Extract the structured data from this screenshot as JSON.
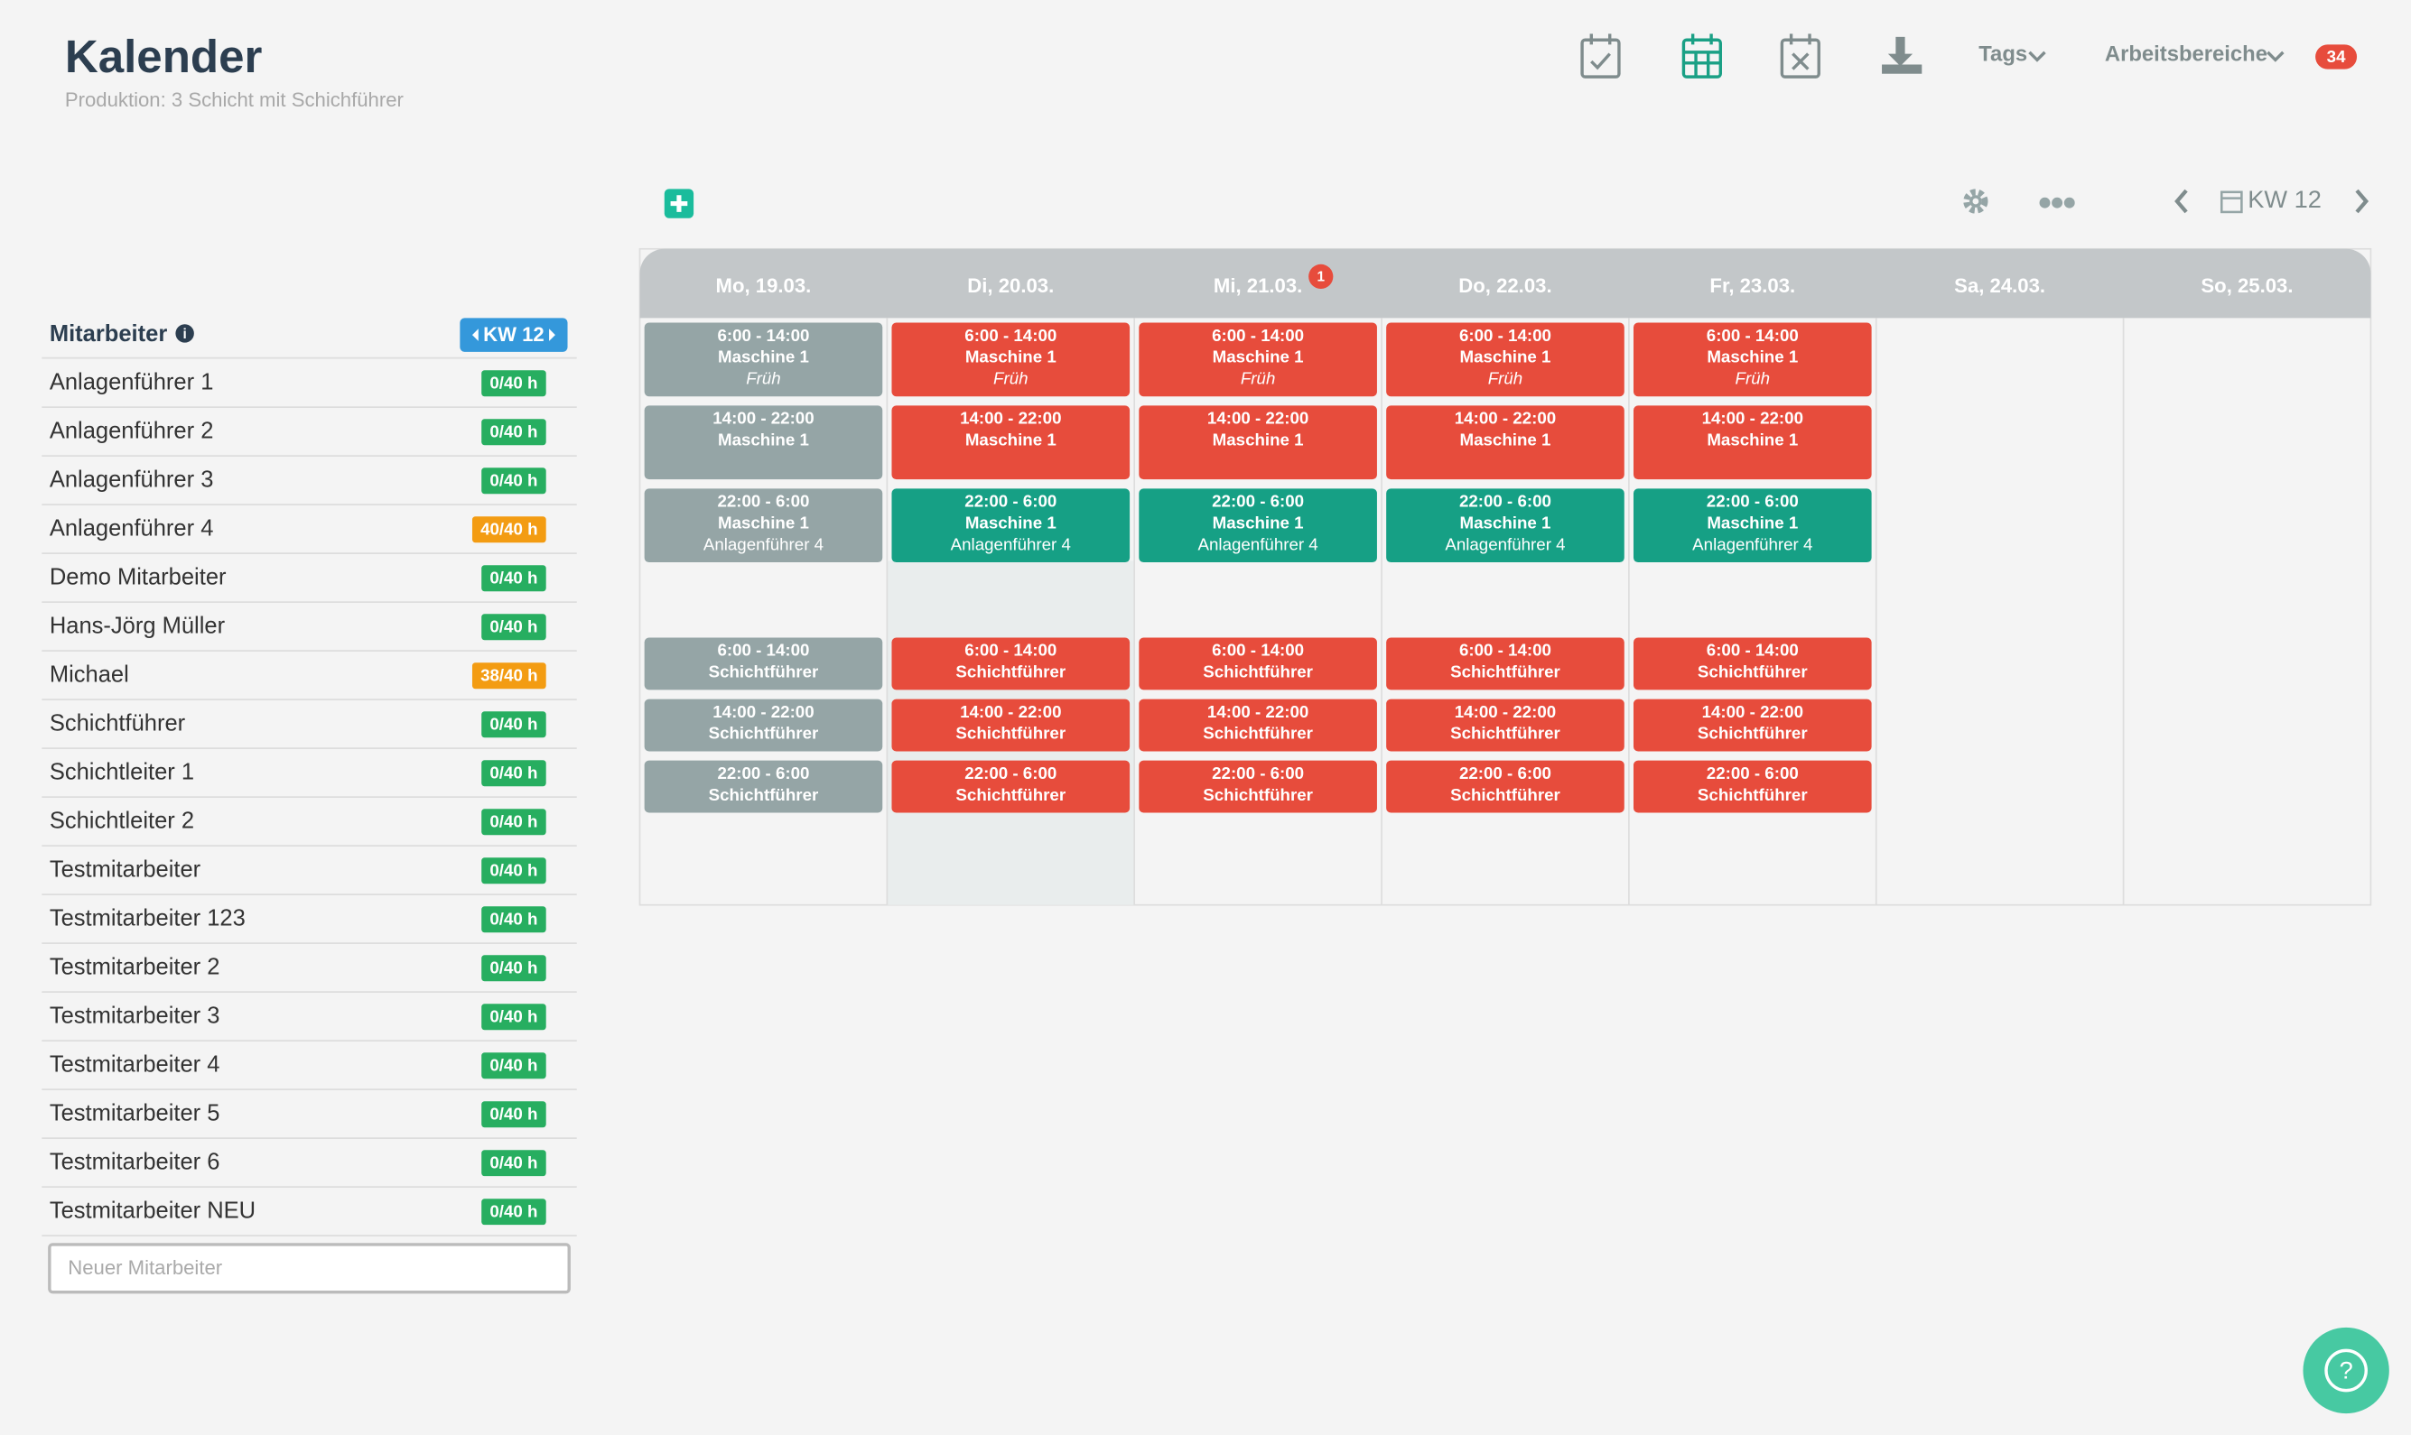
{
  "header": {
    "title": "Kalender",
    "subtitle": "Produktion: 3 Schicht mit Schichführer"
  },
  "nav": {
    "tags": "Tags",
    "areas": "Arbeitsbereiche",
    "badge": "34"
  },
  "toolbar": {
    "week": "KW 12"
  },
  "days": [
    {
      "label": "Mo, 19.03."
    },
    {
      "label": "Di, 20.03."
    },
    {
      "label": "Mi, 21.03.",
      "badge": "1"
    },
    {
      "label": "Do, 22.03."
    },
    {
      "label": "Fr, 23.03."
    },
    {
      "label": "Sa, 24.03."
    },
    {
      "label": "So, 25.03."
    }
  ],
  "shifts": [
    [
      {
        "time": "6:00 - 14:00",
        "title": "Maschine 1",
        "tag": "Früh",
        "color": "#95a5a6"
      },
      {
        "time": "14:00 - 22:00",
        "title": "Maschine 1",
        "color": "#95a5a6"
      },
      {
        "time": "22:00 - 6:00",
        "title": "Maschine 1",
        "staff": "Anlagenführer 4",
        "color": "#95a5a6"
      },
      {
        "time": "6:00 - 14:00",
        "title": "Schichtführer",
        "color": "#95a5a6"
      },
      {
        "time": "14:00 - 22:00",
        "title": "Schichtführer",
        "color": "#95a5a6"
      },
      {
        "time": "22:00 - 6:00",
        "title": "Schichtführer",
        "color": "#95a5a6"
      }
    ],
    [
      {
        "time": "6:00 - 14:00",
        "title": "Maschine 1",
        "tag": "Früh",
        "color": "#e74c3c"
      },
      {
        "time": "14:00 - 22:00",
        "title": "Maschine 1",
        "color": "#e74c3c"
      },
      {
        "time": "22:00 - 6:00",
        "title": "Maschine 1",
        "staff": "Anlagenführer 4",
        "color": "#16a085"
      },
      {
        "time": "6:00 - 14:00",
        "title": "Schichtführer",
        "color": "#e74c3c"
      },
      {
        "time": "14:00 - 22:00",
        "title": "Schichtführer",
        "color": "#e74c3c"
      },
      {
        "time": "22:00 - 6:00",
        "title": "Schichtführer",
        "color": "#e74c3c"
      }
    ],
    [
      {
        "time": "6:00 - 14:00",
        "title": "Maschine 1",
        "tag": "Früh",
        "color": "#e74c3c"
      },
      {
        "time": "14:00 - 22:00",
        "title": "Maschine 1",
        "color": "#e74c3c"
      },
      {
        "time": "22:00 - 6:00",
        "title": "Maschine 1",
        "staff": "Anlagenführer 4",
        "color": "#16a085"
      },
      {
        "time": "6:00 - 14:00",
        "title": "Schichtführer",
        "color": "#e74c3c"
      },
      {
        "time": "14:00 - 22:00",
        "title": "Schichtführer",
        "color": "#e74c3c"
      },
      {
        "time": "22:00 - 6:00",
        "title": "Schichtführer",
        "color": "#e74c3c"
      }
    ],
    [
      {
        "time": "6:00 - 14:00",
        "title": "Maschine 1",
        "tag": "Früh",
        "color": "#e74c3c"
      },
      {
        "time": "14:00 - 22:00",
        "title": "Maschine 1",
        "color": "#e74c3c"
      },
      {
        "time": "22:00 - 6:00",
        "title": "Maschine 1",
        "staff": "Anlagenführer 4",
        "color": "#16a085"
      },
      {
        "time": "6:00 - 14:00",
        "title": "Schichtführer",
        "color": "#e74c3c"
      },
      {
        "time": "14:00 - 22:00",
        "title": "Schichtführer",
        "color": "#e74c3c"
      },
      {
        "time": "22:00 - 6:00",
        "title": "Schichtführer",
        "color": "#e74c3c"
      }
    ],
    [
      {
        "time": "6:00 - 14:00",
        "title": "Maschine 1",
        "tag": "Früh",
        "color": "#e74c3c"
      },
      {
        "time": "14:00 - 22:00",
        "title": "Maschine 1",
        "color": "#e74c3c"
      },
      {
        "time": "22:00 - 6:00",
        "title": "Maschine 1",
        "staff": "Anlagenführer 4",
        "color": "#16a085"
      },
      {
        "time": "6:00 - 14:00",
        "title": "Schichtführer",
        "color": "#e74c3c"
      },
      {
        "time": "14:00 - 22:00",
        "title": "Schichtführer",
        "color": "#e74c3c"
      },
      {
        "time": "22:00 - 6:00",
        "title": "Schichtführer",
        "color": "#e74c3c"
      }
    ],
    [],
    []
  ],
  "employees": {
    "header": "Mitarbeiter",
    "week": "KW 12",
    "rows": [
      {
        "name": "Anlagenführer 1",
        "hours": "0/40 h",
        "color": "#27ae60"
      },
      {
        "name": "Anlagenführer 2",
        "hours": "0/40 h",
        "color": "#27ae60"
      },
      {
        "name": "Anlagenführer 3",
        "hours": "0/40 h",
        "color": "#27ae60"
      },
      {
        "name": "Anlagenführer 4",
        "hours": "40/40 h",
        "color": "#f39c12"
      },
      {
        "name": "Demo Mitarbeiter",
        "hours": "0/40 h",
        "color": "#27ae60"
      },
      {
        "name": "Hans-Jörg Müller",
        "hours": "0/40 h",
        "color": "#27ae60"
      },
      {
        "name": "Michael",
        "hours": "38/40 h",
        "color": "#f39c12"
      },
      {
        "name": "Schichtführer",
        "hours": "0/40 h",
        "color": "#27ae60"
      },
      {
        "name": "Schichtleiter 1",
        "hours": "0/40 h",
        "color": "#27ae60"
      },
      {
        "name": "Schichtleiter 2",
        "hours": "0/40 h",
        "color": "#27ae60"
      },
      {
        "name": "Testmitarbeiter",
        "hours": "0/40 h",
        "color": "#27ae60"
      },
      {
        "name": "Testmitarbeiter 123",
        "hours": "0/40 h",
        "color": "#27ae60"
      },
      {
        "name": "Testmitarbeiter 2",
        "hours": "0/40 h",
        "color": "#27ae60"
      },
      {
        "name": "Testmitarbeiter 3",
        "hours": "0/40 h",
        "color": "#27ae60"
      },
      {
        "name": "Testmitarbeiter 4",
        "hours": "0/40 h",
        "color": "#27ae60"
      },
      {
        "name": "Testmitarbeiter 5",
        "hours": "0/40 h",
        "color": "#27ae60"
      },
      {
        "name": "Testmitarbeiter 6",
        "hours": "0/40 h",
        "color": "#27ae60"
      },
      {
        "name": "Testmitarbeiter NEU",
        "hours": "0/40 h",
        "color": "#27ae60"
      }
    ],
    "placeholder": "Neuer Mitarbeiter"
  }
}
